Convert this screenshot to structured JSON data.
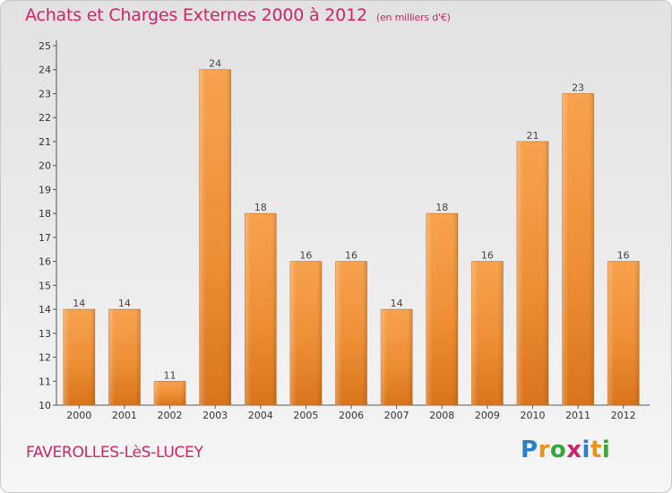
{
  "title": "Achats et Charges Externes 2000 à 2012",
  "subtitle": "(en milliers d'€)",
  "place": "FAVEROLLES-LèS-LUCEY",
  "logo": {
    "letters": [
      "P",
      "r",
      "o",
      "x",
      "i",
      "t",
      "i"
    ],
    "colors": [
      "#2a7fc9",
      "#e8951c",
      "#3aa53a",
      "#d02468",
      "#2a7fc9",
      "#e8951c",
      "#3aa53a"
    ]
  },
  "chart_data": {
    "type": "bar",
    "title": "Achats et Charges Externes 2000 à 2012",
    "subtitle": "(en milliers d'€)",
    "categories": [
      "2000",
      "2001",
      "2002",
      "2003",
      "2004",
      "2005",
      "2006",
      "2007",
      "2008",
      "2009",
      "2010",
      "2011",
      "2012"
    ],
    "values": [
      14,
      14,
      11,
      24,
      18,
      16,
      16,
      14,
      18,
      16,
      21,
      23,
      16
    ],
    "ylim": [
      10,
      25
    ],
    "yticks": [
      10,
      11,
      12,
      13,
      14,
      15,
      16,
      17,
      18,
      19,
      20,
      21,
      22,
      23,
      24,
      25
    ],
    "grid": false,
    "bar_color": "#f0943a",
    "data_labels": true
  }
}
